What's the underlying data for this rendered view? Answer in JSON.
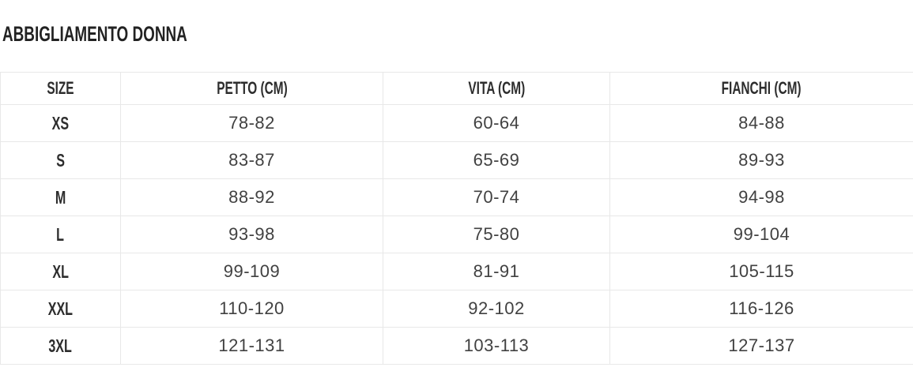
{
  "page": {
    "title": "ABBIGLIAMENTO DONNA"
  },
  "table": {
    "columns": [
      "SIZE",
      "PETTO (CM)",
      "VITA (CM)",
      "FIANCHI (CM)"
    ],
    "rows": [
      {
        "size": "XS",
        "petto": "78-82",
        "vita": "60-64",
        "fianchi": "84-88"
      },
      {
        "size": "S",
        "petto": "83-87",
        "vita": "65-69",
        "fianchi": "89-93"
      },
      {
        "size": "M",
        "petto": "88-92",
        "vita": "70-74",
        "fianchi": "94-98"
      },
      {
        "size": "L",
        "petto": "93-98",
        "vita": "75-80",
        "fianchi": "99-104"
      },
      {
        "size": "XL",
        "petto": "99-109",
        "vita": "81-91",
        "fianchi": "105-115"
      },
      {
        "size": "XXL",
        "petto": "110-120",
        "vita": "92-102",
        "fianchi": "116-126"
      },
      {
        "size": "3XL",
        "petto": "121-131",
        "vita": "103-113",
        "fianchi": "127-137"
      }
    ]
  },
  "colors": {
    "background": "#ffffff",
    "border": "#e8e8e8",
    "heading_text": "#2d2d2d",
    "value_text": "#414141"
  }
}
